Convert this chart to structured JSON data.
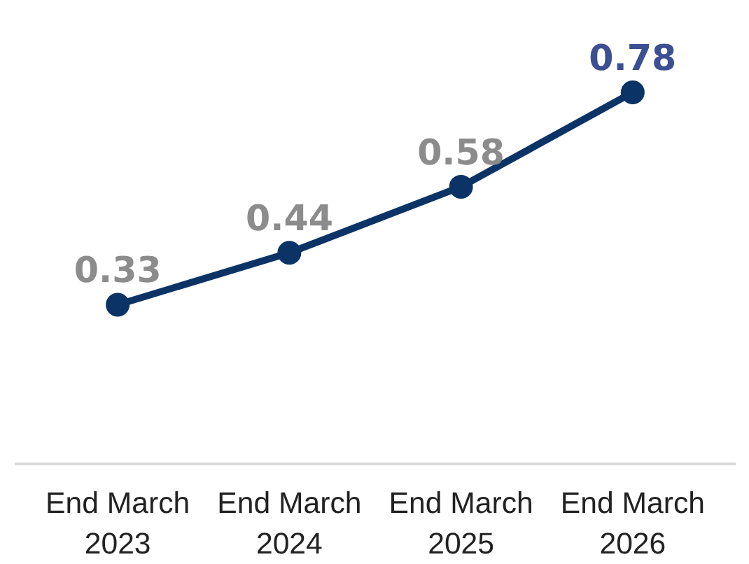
{
  "chart_data": {
    "type": "line",
    "categories": [
      "End March\n2023",
      "End March\n2024",
      "End March\n2025",
      "End March\n2026"
    ],
    "series": [
      {
        "color": "#0b3366",
        "values": [
          0.33,
          0.44,
          0.58,
          0.78
        ]
      }
    ],
    "data_labels": true,
    "marker": "circle",
    "line_style": "solid",
    "grid": false
  }
}
